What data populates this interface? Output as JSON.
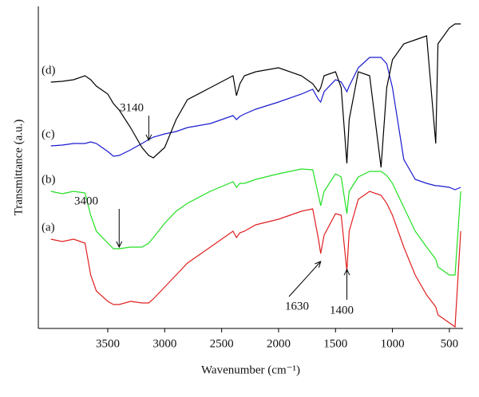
{
  "chart_data": {
    "type": "line",
    "x_label": "Wavenumber (cm⁻¹)",
    "y_label": "Transmittance (a.u.)",
    "x": [
      4000,
      3900,
      3800,
      3700,
      3650,
      3600,
      3500,
      3450,
      3400,
      3300,
      3200,
      3140,
      3100,
      3000,
      2900,
      2800,
      2600,
      2400,
      2370,
      2340,
      2300,
      2200,
      2000,
      1800,
      1700,
      1650,
      1630,
      1600,
      1500,
      1450,
      1400,
      1380,
      1300,
      1200,
      1100,
      1050,
      1000,
      900,
      800,
      700,
      620,
      600,
      500,
      450,
      400
    ],
    "series": [
      {
        "name": "(a)",
        "color": "#e02020",
        "values": [
          112,
          109,
          112,
          107,
          67,
          47,
          34,
          30,
          30,
          34,
          32,
          32,
          37,
          52,
          67,
          82,
          102,
          122,
          114,
          120,
          122,
          130,
          137,
          147,
          150,
          112,
          94,
          117,
          144,
          142,
          72,
          122,
          162,
          172,
          167,
          157,
          142,
          102,
          67,
          42,
          27,
          17,
          7,
          2,
          122
        ]
      },
      {
        "name": "(b)",
        "color": "#22e022",
        "values": [
          172,
          169,
          172,
          170,
          142,
          122,
          107,
          100,
          100,
          102,
          102,
          107,
          114,
          132,
          147,
          157,
          172,
          184,
          177,
          182,
          182,
          187,
          194,
          200,
          199,
          167,
          154,
          172,
          194,
          190,
          144,
          172,
          190,
          197,
          197,
          192,
          182,
          152,
          122,
          102,
          87,
          77,
          67,
          67,
          172
        ]
      },
      {
        "name": "(c)",
        "color": "#1a1ad0",
        "values": [
          229,
          230,
          232,
          232,
          234,
          232,
          222,
          216,
          217,
          224,
          232,
          237,
          240,
          244,
          247,
          252,
          257,
          267,
          262,
          266,
          269,
          275,
          284,
          294,
          300,
          287,
          284,
          297,
          312,
          309,
          297,
          304,
          327,
          340,
          340,
          332,
          302,
          212,
          187,
          182,
          179,
          179,
          177,
          174,
          177
        ]
      },
      {
        "name": "(d)",
        "color": "#000000",
        "values": [
          309,
          310,
          312,
          317,
          312,
          304,
          294,
          282,
          274,
          252,
          227,
          217,
          214,
          227,
          262,
          287,
          302,
          317,
          292,
          307,
          317,
          322,
          327,
          317,
          307,
          297,
          302,
          317,
          322,
          302,
          207,
          262,
          322,
          317,
          202,
          302,
          337,
          357,
          362,
          367,
          232,
          357,
          377,
          382,
          382
        ]
      }
    ],
    "xlim": [
      4110,
      380
    ],
    "ylim": [
      0,
      404
    ],
    "xticks": [
      3500,
      3000,
      2500,
      2000,
      1500,
      1000,
      500
    ],
    "annotations": [
      {
        "text": "3140",
        "x": 3140
      },
      {
        "text": "3400",
        "x": 3400
      },
      {
        "text": "1630",
        "x": 1630
      },
      {
        "text": "1400",
        "x": 1400
      }
    ]
  }
}
